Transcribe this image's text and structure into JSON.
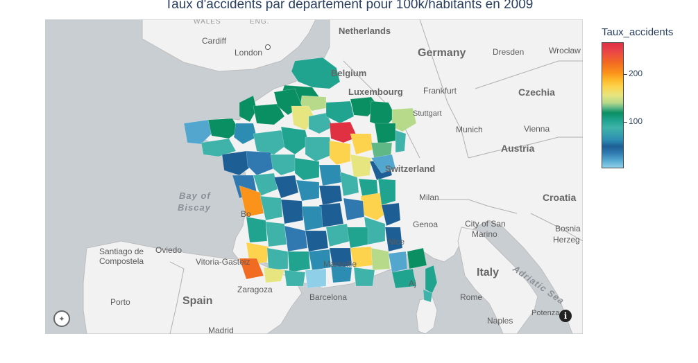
{
  "title": "Taux d'accidents par département pour 100k/habitants en 2009",
  "colorbar": {
    "title": "Taux_accidents",
    "ticks": [
      "200",
      "100"
    ]
  },
  "map_labels": {
    "wales": "WALES",
    "eng": "ENG.",
    "cardiff": "Cardiff",
    "london": "London",
    "netherlands": "Netherlands",
    "germany": "Germany",
    "dresden": "Dresden",
    "wroclaw": "Wrocław",
    "belgium": "Belgium",
    "luxembourg": "Luxembourg",
    "frankfurt": "Frankfurt",
    "czechia": "Czechia",
    "stuttgart": "Stuttgart",
    "munich": "Munich",
    "vienna": "Vienna",
    "austria": "Austria",
    "switzerland": "Switzerland",
    "bay": "Bay of",
    "biscay": "Biscay",
    "milan": "Milan",
    "croatia": "Croatia",
    "genoa": "Genoa",
    "city_san": "City of San",
    "marino": "Marino",
    "bosnia": "Bosnia",
    "herzeg": "Herzeg",
    "nice": "Nice",
    "santiago": "Santiago de",
    "compostela": "Compostela",
    "oviedo": "Oviedo",
    "vitoria": "Vitoria-Gasteiz",
    "marseille": "Marseille",
    "adriatic": "Adriatic Sea",
    "italy": "Italy",
    "zaragoza": "Zaragoza",
    "porto": "Porto",
    "spain": "Spain",
    "barcelona": "Barcelona",
    "rome": "Rome",
    "naples": "Naples",
    "potenza": "Potenza",
    "madrid": "Madrid",
    "bordeaux": "Bo",
    "ajaccio": "Aj"
  },
  "controls": {
    "compass_icon": "compass-icon",
    "info_icon": "info-icon"
  },
  "colors": {
    "land": "#f2f2f2",
    "sea": "#c9ced3",
    "scale_low": "#8fd0e8",
    "scale_mid": "#0a8f62",
    "scale_high": "#df3142"
  }
}
